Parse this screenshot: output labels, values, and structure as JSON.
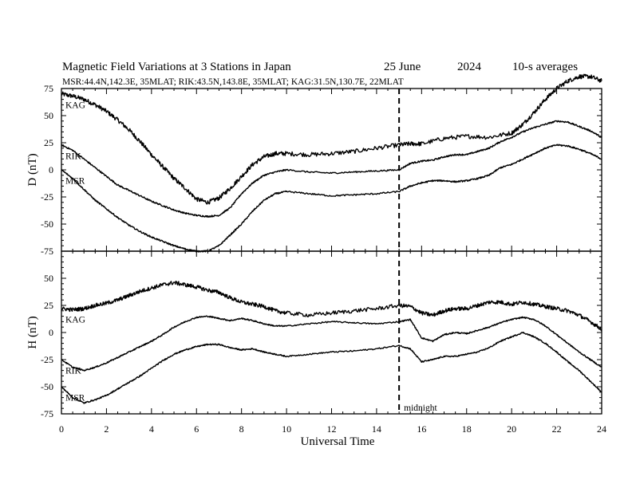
{
  "header": {
    "title": "Magnetic Field Variations at 3 Stations in Japan",
    "date": "25 June",
    "year": "2024",
    "averaging": "10-s averages",
    "stations_line": "MSR:44.4N,142.3E, 35MLAT;  RIK:43.5N,143.8E, 35MLAT;  KAG:31.5N,130.7E, 22MLAT"
  },
  "chart_data": {
    "type": "line",
    "xlabel": "Universal Time",
    "xlim": [
      0,
      24
    ],
    "x_ticks": [
      "0",
      "2",
      "4",
      "6",
      "8",
      "10",
      "12",
      "14",
      "16",
      "18",
      "20",
      "22",
      "24"
    ],
    "annotation": {
      "x": 15,
      "label": "midnight"
    },
    "panels": [
      {
        "ylabel": "D (nT)",
        "ylim": [
          -75,
          75
        ],
        "y_ticks": [
          "75",
          "50",
          "25",
          "0",
          "-25",
          "-50",
          "-75"
        ],
        "series": [
          {
            "name": "KAG",
            "noise": 2.0,
            "x": [
              0,
              0.5,
              1,
              1.5,
              2,
              2.5,
              3,
              3.5,
              4,
              4.5,
              5,
              5.5,
              6,
              6.5,
              7,
              7.5,
              8,
              8.5,
              9,
              9.5,
              10,
              11,
              12,
              13,
              14,
              15,
              15.5,
              16,
              17,
              18,
              19,
              20,
              20.5,
              21,
              21.5,
              22,
              22.5,
              23,
              23.5,
              24
            ],
            "values": [
              70,
              68,
              65,
              60,
              54,
              46,
              37,
              26,
              14,
              3,
              -8,
              -17,
              -27,
              -30,
              -26,
              -17,
              -6,
              5,
              12,
              15,
              15,
              14,
              15,
              17,
              20,
              23,
              24,
              24,
              29,
              31,
              30,
              34,
              42,
              53,
              65,
              75,
              82,
              86,
              86,
              82
            ]
          },
          {
            "name": "RIK",
            "noise": 0.7,
            "x": [
              0,
              0.5,
              1,
              1.5,
              2,
              2.5,
              3,
              3.5,
              4,
              4.5,
              5,
              5.5,
              6,
              6.5,
              7,
              7.5,
              8,
              8.5,
              9,
              9.5,
              10,
              11,
              12,
              13,
              14,
              15,
              15.5,
              16,
              16.5,
              17,
              17.5,
              18,
              18.5,
              19,
              19.5,
              20,
              20.5,
              21,
              21.5,
              22,
              22.5,
              23,
              23.5,
              24
            ],
            "values": [
              23,
              18,
              10,
              2,
              -6,
              -14,
              -19,
              -24,
              -29,
              -33,
              -37,
              -40,
              -42,
              -43,
              -42,
              -35,
              -22,
              -12,
              -5,
              -2,
              0,
              -2,
              -3,
              -2,
              -1,
              0,
              6,
              8,
              9,
              12,
              14,
              14,
              17,
              20,
              26,
              30,
              35,
              39,
              42,
              45,
              44,
              40,
              36,
              30
            ]
          },
          {
            "name": "MSR",
            "noise": 0.7,
            "x": [
              0,
              0.5,
              1,
              1.5,
              2,
              2.5,
              3,
              3.5,
              4,
              4.5,
              5,
              5.5,
              6,
              6.5,
              7,
              7.5,
              8,
              8.5,
              9,
              9.5,
              10,
              11,
              12,
              13,
              14,
              15,
              15.5,
              16,
              16.5,
              17,
              17.5,
              18,
              18.5,
              19,
              19.5,
              20,
              20.5,
              21,
              21.5,
              22,
              22.5,
              23,
              23.5,
              24
            ],
            "values": [
              0,
              -8,
              -18,
              -28,
              -36,
              -44,
              -51,
              -57,
              -62,
              -66,
              -70,
              -73,
              -75,
              -75,
              -70,
              -60,
              -50,
              -38,
              -28,
              -22,
              -20,
              -22,
              -24,
              -23,
              -22,
              -20,
              -15,
              -12,
              -10,
              -10,
              -11,
              -10,
              -8,
              -5,
              2,
              5,
              10,
              15,
              20,
              23,
              22,
              19,
              15,
              10
            ]
          }
        ]
      },
      {
        "ylabel": "H (nT)",
        "ylim": [
          -75,
          75
        ],
        "y_ticks": [
          "75",
          "50",
          "25",
          "0",
          "-25",
          "-50",
          "-75"
        ],
        "series": [
          {
            "name": "KAG",
            "noise": 1.8,
            "x": [
              0,
              0.5,
              1,
              1.5,
              2,
              2.5,
              3,
              3.5,
              4,
              4.5,
              5,
              5.5,
              6,
              6.5,
              7,
              7.5,
              8,
              8.5,
              9,
              9.5,
              10,
              11,
              12,
              13,
              14,
              15,
              15.5,
              16,
              16.5,
              17,
              17.5,
              18,
              18.5,
              19,
              19.5,
              20,
              20.5,
              21,
              21.5,
              22,
              22.5,
              23,
              23.5,
              24
            ],
            "values": [
              22,
              21,
              22,
              25,
              27,
              30,
              34,
              38,
              41,
              44,
              46,
              44,
              42,
              39,
              37,
              32,
              28,
              26,
              24,
              20,
              18,
              16,
              18,
              20,
              22,
              25,
              24,
              18,
              16,
              20,
              22,
              22,
              25,
              28,
              28,
              26,
              28,
              26,
              24,
              22,
              20,
              16,
              10,
              3
            ]
          },
          {
            "name": "RIK",
            "noise": 0.6,
            "x": [
              0,
              0.5,
              1,
              1.5,
              2,
              2.5,
              3,
              3.5,
              4,
              4.5,
              5,
              5.5,
              6,
              6.5,
              7,
              7.5,
              8,
              8.5,
              9,
              9.5,
              10,
              11,
              12,
              13,
              14,
              15,
              15.5,
              16,
              16.5,
              17,
              17.5,
              18,
              18.5,
              19,
              19.5,
              20,
              20.5,
              21,
              21.5,
              22,
              22.5,
              23,
              23.5,
              24
            ],
            "values": [
              -25,
              -32,
              -35,
              -32,
              -28,
              -23,
              -18,
              -13,
              -8,
              -2,
              5,
              10,
              14,
              15,
              13,
              11,
              13,
              11,
              8,
              6,
              6,
              8,
              10,
              9,
              8,
              10,
              12,
              -5,
              -8,
              -2,
              0,
              -1,
              2,
              5,
              9,
              12,
              14,
              12,
              6,
              -2,
              -10,
              -18,
              -25,
              -32
            ]
          },
          {
            "name": "MSR",
            "noise": 0.6,
            "x": [
              0,
              0.5,
              1,
              1.5,
              2,
              2.5,
              3,
              3.5,
              4,
              4.5,
              5,
              5.5,
              6,
              6.5,
              7,
              7.5,
              8,
              8.5,
              9,
              9.5,
              10,
              11,
              12,
              13,
              14,
              15,
              15.5,
              16,
              16.5,
              17,
              17.5,
              18,
              18.5,
              19,
              19.5,
              20,
              20.5,
              21,
              21.5,
              22,
              22.5,
              23,
              23.5,
              24
            ],
            "values": [
              -50,
              -60,
              -65,
              -62,
              -58,
              -52,
              -46,
              -40,
              -33,
              -26,
              -20,
              -16,
              -13,
              -11,
              -11,
              -14,
              -16,
              -15,
              -18,
              -20,
              -22,
              -20,
              -18,
              -17,
              -15,
              -12,
              -15,
              -27,
              -25,
              -22,
              -22,
              -20,
              -18,
              -14,
              -8,
              -4,
              0,
              -4,
              -10,
              -18,
              -27,
              -35,
              -45,
              -55
            ]
          }
        ]
      }
    ]
  }
}
